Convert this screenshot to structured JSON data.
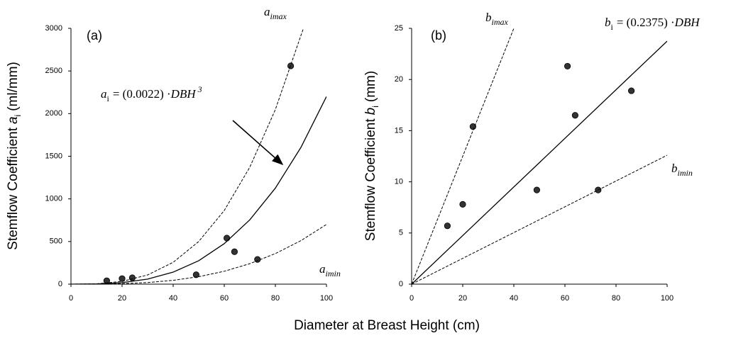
{
  "chart_data": [
    {
      "type": "scatter",
      "panel_label": "(a)",
      "ylabel": {
        "prefix": "Stemflow Coefficient",
        "var": "a",
        "sub": "i",
        "unit": "(ml/mm)"
      },
      "xlabel": "Diameter at Breast Height (cm)",
      "xlim": [
        0,
        100
      ],
      "xticks": [
        0,
        20,
        40,
        60,
        80,
        100
      ],
      "ylim": [
        0,
        3000
      ],
      "yticks": [
        0,
        500,
        1000,
        1500,
        2000,
        2500,
        3000
      ],
      "annotations": [
        {
          "main": "a",
          "sub": "imax"
        },
        {
          "main": "a",
          "sub": "i",
          "rest": "= (0.0022) ·",
          "var": "DBH",
          "sup": "3"
        },
        {
          "main": "a",
          "sub": "imin"
        }
      ],
      "series": [
        {
          "style": "points",
          "color": "#333333",
          "x": [
            14,
            20,
            24,
            49,
            61,
            64,
            73,
            86
          ],
          "values": [
            40,
            65,
            75,
            110,
            540,
            380,
            290,
            2560
          ]
        },
        {
          "style": "solid",
          "color": "#000000",
          "x": [
            0,
            10,
            20,
            30,
            40,
            50,
            60,
            70,
            80,
            90,
            100
          ],
          "values": [
            0,
            2.2,
            17.6,
            59.4,
            140.8,
            275,
            475.2,
            754.6,
            1126.4,
            1603.8,
            2200
          ]
        },
        {
          "style": "dashed",
          "color": "#000000",
          "x": [
            0,
            10,
            20,
            30,
            40,
            50,
            60,
            70,
            80,
            90,
            91
          ],
          "values": [
            0,
            4,
            32,
            108,
            256,
            500,
            864,
            1372,
            2048,
            2916,
            3000
          ]
        },
        {
          "style": "dashed",
          "color": "#000000",
          "x": [
            0,
            10,
            20,
            30,
            40,
            50,
            60,
            70,
            80,
            90,
            100
          ],
          "values": [
            0,
            0.7,
            5.6,
            18.9,
            44.8,
            87.5,
            151.2,
            240.1,
            358.4,
            510.3,
            700
          ]
        }
      ]
    },
    {
      "type": "scatter",
      "panel_label": "(b)",
      "ylabel": {
        "prefix": "Stemflow Coefficient",
        "var": "b",
        "sub": "i",
        "unit": "(mm)"
      },
      "xlim": [
        0,
        100
      ],
      "xticks": [
        0,
        20,
        40,
        60,
        80,
        100
      ],
      "ylim": [
        0,
        25
      ],
      "yticks": [
        0,
        5,
        10,
        15,
        20,
        25
      ],
      "annotations": [
        {
          "main": "b",
          "sub": "imax"
        },
        {
          "main": "b",
          "sub": "i",
          "rest": "= (0.2375) ·",
          "var": "DBH"
        },
        {
          "main": "b",
          "sub": "imin"
        }
      ],
      "series": [
        {
          "style": "points",
          "color": "#333333",
          "x": [
            14,
            20,
            24,
            49,
            61,
            64,
            73,
            86
          ],
          "values": [
            5.7,
            7.8,
            15.4,
            9.2,
            21.3,
            16.5,
            9.2,
            18.9
          ]
        },
        {
          "style": "solid",
          "color": "#000000",
          "x": [
            0,
            100
          ],
          "values": [
            0,
            23.75
          ]
        },
        {
          "style": "dashed",
          "color": "#000000",
          "x": [
            0,
            40
          ],
          "values": [
            0,
            25
          ]
        },
        {
          "style": "dashed",
          "color": "#000000",
          "x": [
            0,
            100
          ],
          "values": [
            0,
            12.6
          ]
        }
      ]
    }
  ]
}
